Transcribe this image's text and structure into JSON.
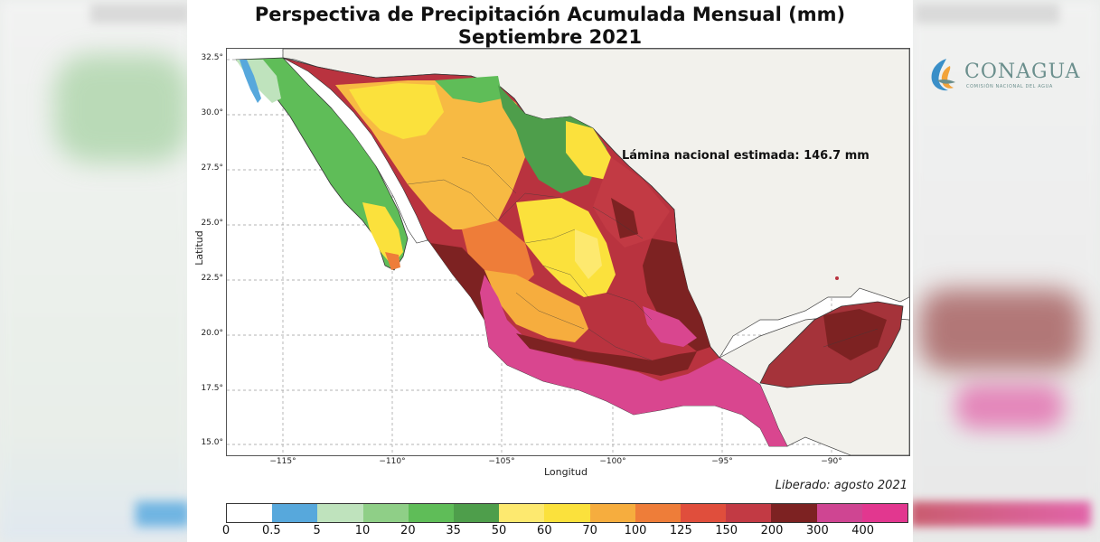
{
  "title": {
    "line1": "Perspectiva de Precipitación Acumulada Mensual (mm)",
    "line2": "Septiembre 2021"
  },
  "logo": {
    "name": "CONAGUA",
    "subtitle": "COMISIÓN NACIONAL DEL AGUA"
  },
  "annotation": "Lámina nacional estimada: 146.7 mm",
  "released": "Liberado: agosto 2021",
  "axes": {
    "xlabel": "Longitud",
    "ylabel": "Latitud",
    "x_ticks": [
      "−115°",
      "−110°",
      "−105°",
      "−100°",
      "−95°",
      "−90°"
    ],
    "y_ticks": [
      "32.5°",
      "30.0°",
      "27.5°",
      "25.0°",
      "22.5°",
      "20.0°",
      "17.5°",
      "15.0°"
    ]
  },
  "colorbar": {
    "labels": [
      "0",
      "0.5",
      "5",
      "10",
      "20",
      "35",
      "50",
      "60",
      "70",
      "100",
      "125",
      "150",
      "200",
      "300",
      "400"
    ],
    "colors": [
      "#ffffff",
      "#57a8dc",
      "#bfe3bd",
      "#8fcf87",
      "#5fbd58",
      "#4e9e4b",
      "#fde96f",
      "#fbe13c",
      "#f6ad3e",
      "#ee7d39",
      "#e04e3c",
      "#c23a44",
      "#7d2222",
      "#cf4592",
      "#e2378f"
    ]
  }
}
